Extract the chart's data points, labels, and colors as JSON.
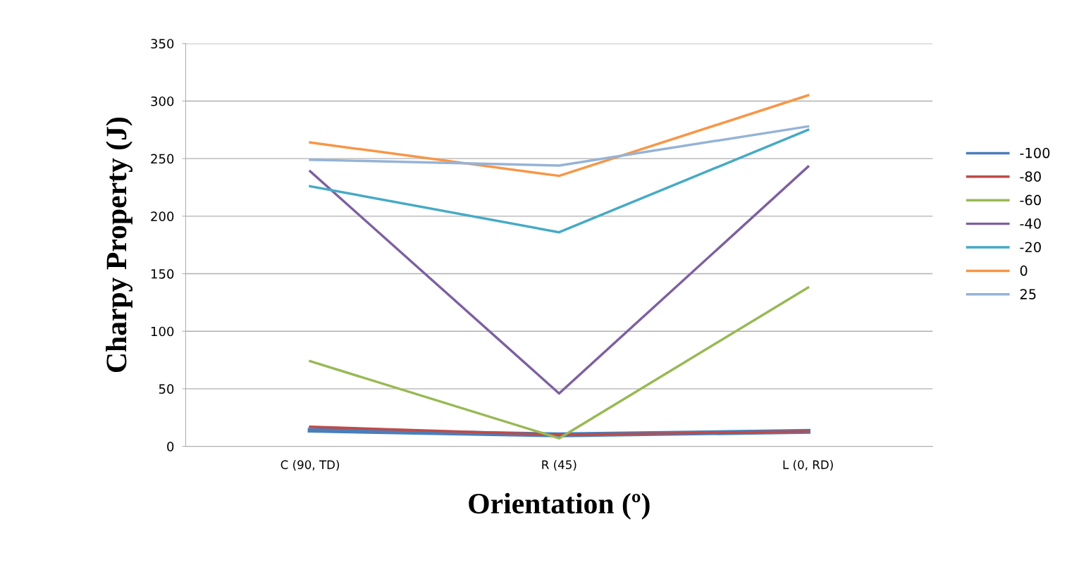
{
  "chart_data": {
    "type": "line",
    "xlabel": "Orientation (º)",
    "ylabel": "Charpy Property (J)",
    "categories": [
      "C (90, TD)",
      "R (45)",
      "L (0, RD)"
    ],
    "ylim": [
      0,
      350
    ],
    "yticks": [
      0,
      50,
      100,
      150,
      200,
      250,
      300,
      350
    ],
    "grid": "y",
    "legend": "right",
    "marker": "none",
    "line_style": "solid",
    "series": [
      {
        "name": "-100",
        "color": "#4a7ebb",
        "values": [
          14,
          10,
          13
        ]
      },
      {
        "name": "-80",
        "color": "#be4b48",
        "values": [
          17,
          10,
          13
        ]
      },
      {
        "name": "-60",
        "color": "#98b954",
        "values": [
          74,
          7,
          138
        ]
      },
      {
        "name": "-40",
        "color": "#7d60a0",
        "values": [
          239,
          46,
          243
        ]
      },
      {
        "name": "-20",
        "color": "#46aac5",
        "values": [
          226,
          186,
          275
        ]
      },
      {
        "name": "0",
        "color": "#f79646",
        "values": [
          264,
          235,
          305
        ]
      },
      {
        "name": "25",
        "color": "#95b3d7",
        "values": [
          249,
          244,
          278
        ]
      }
    ]
  }
}
